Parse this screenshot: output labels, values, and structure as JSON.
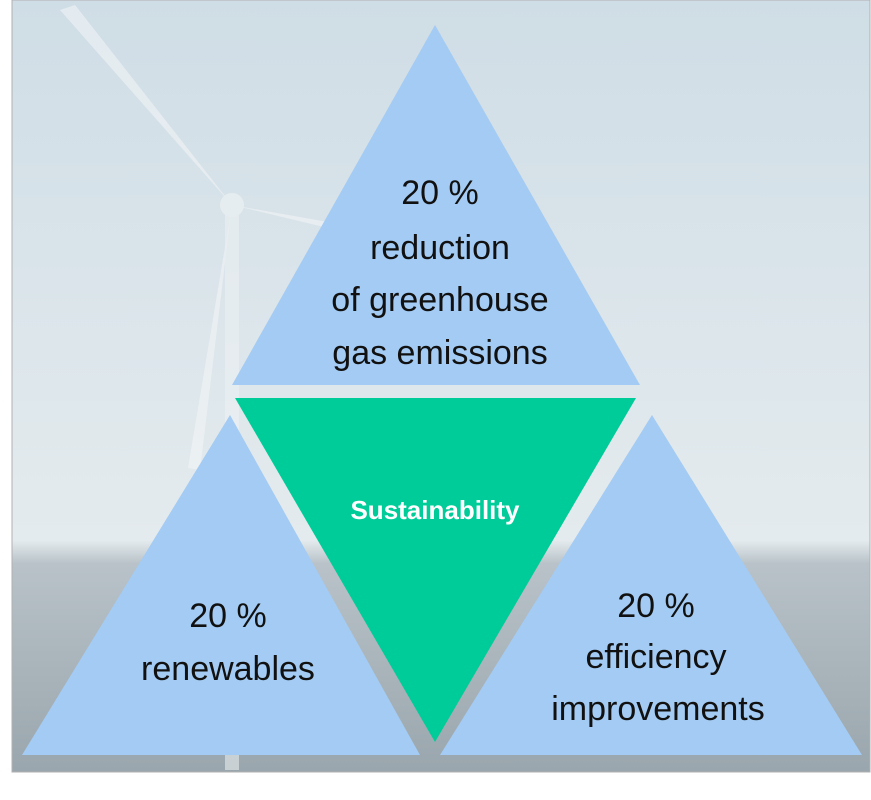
{
  "nodes": [
    {
      "lines": [
        "20 %",
        "reduction",
        "of greenhouse",
        "gas emissions"
      ]
    },
    {
      "lines": [
        "Sustainability"
      ]
    },
    {
      "lines": [
        "20 %",
        "renewables"
      ]
    },
    {
      "lines": [
        "20 %",
        "efficiency",
        "improvements"
      ]
    }
  ]
}
